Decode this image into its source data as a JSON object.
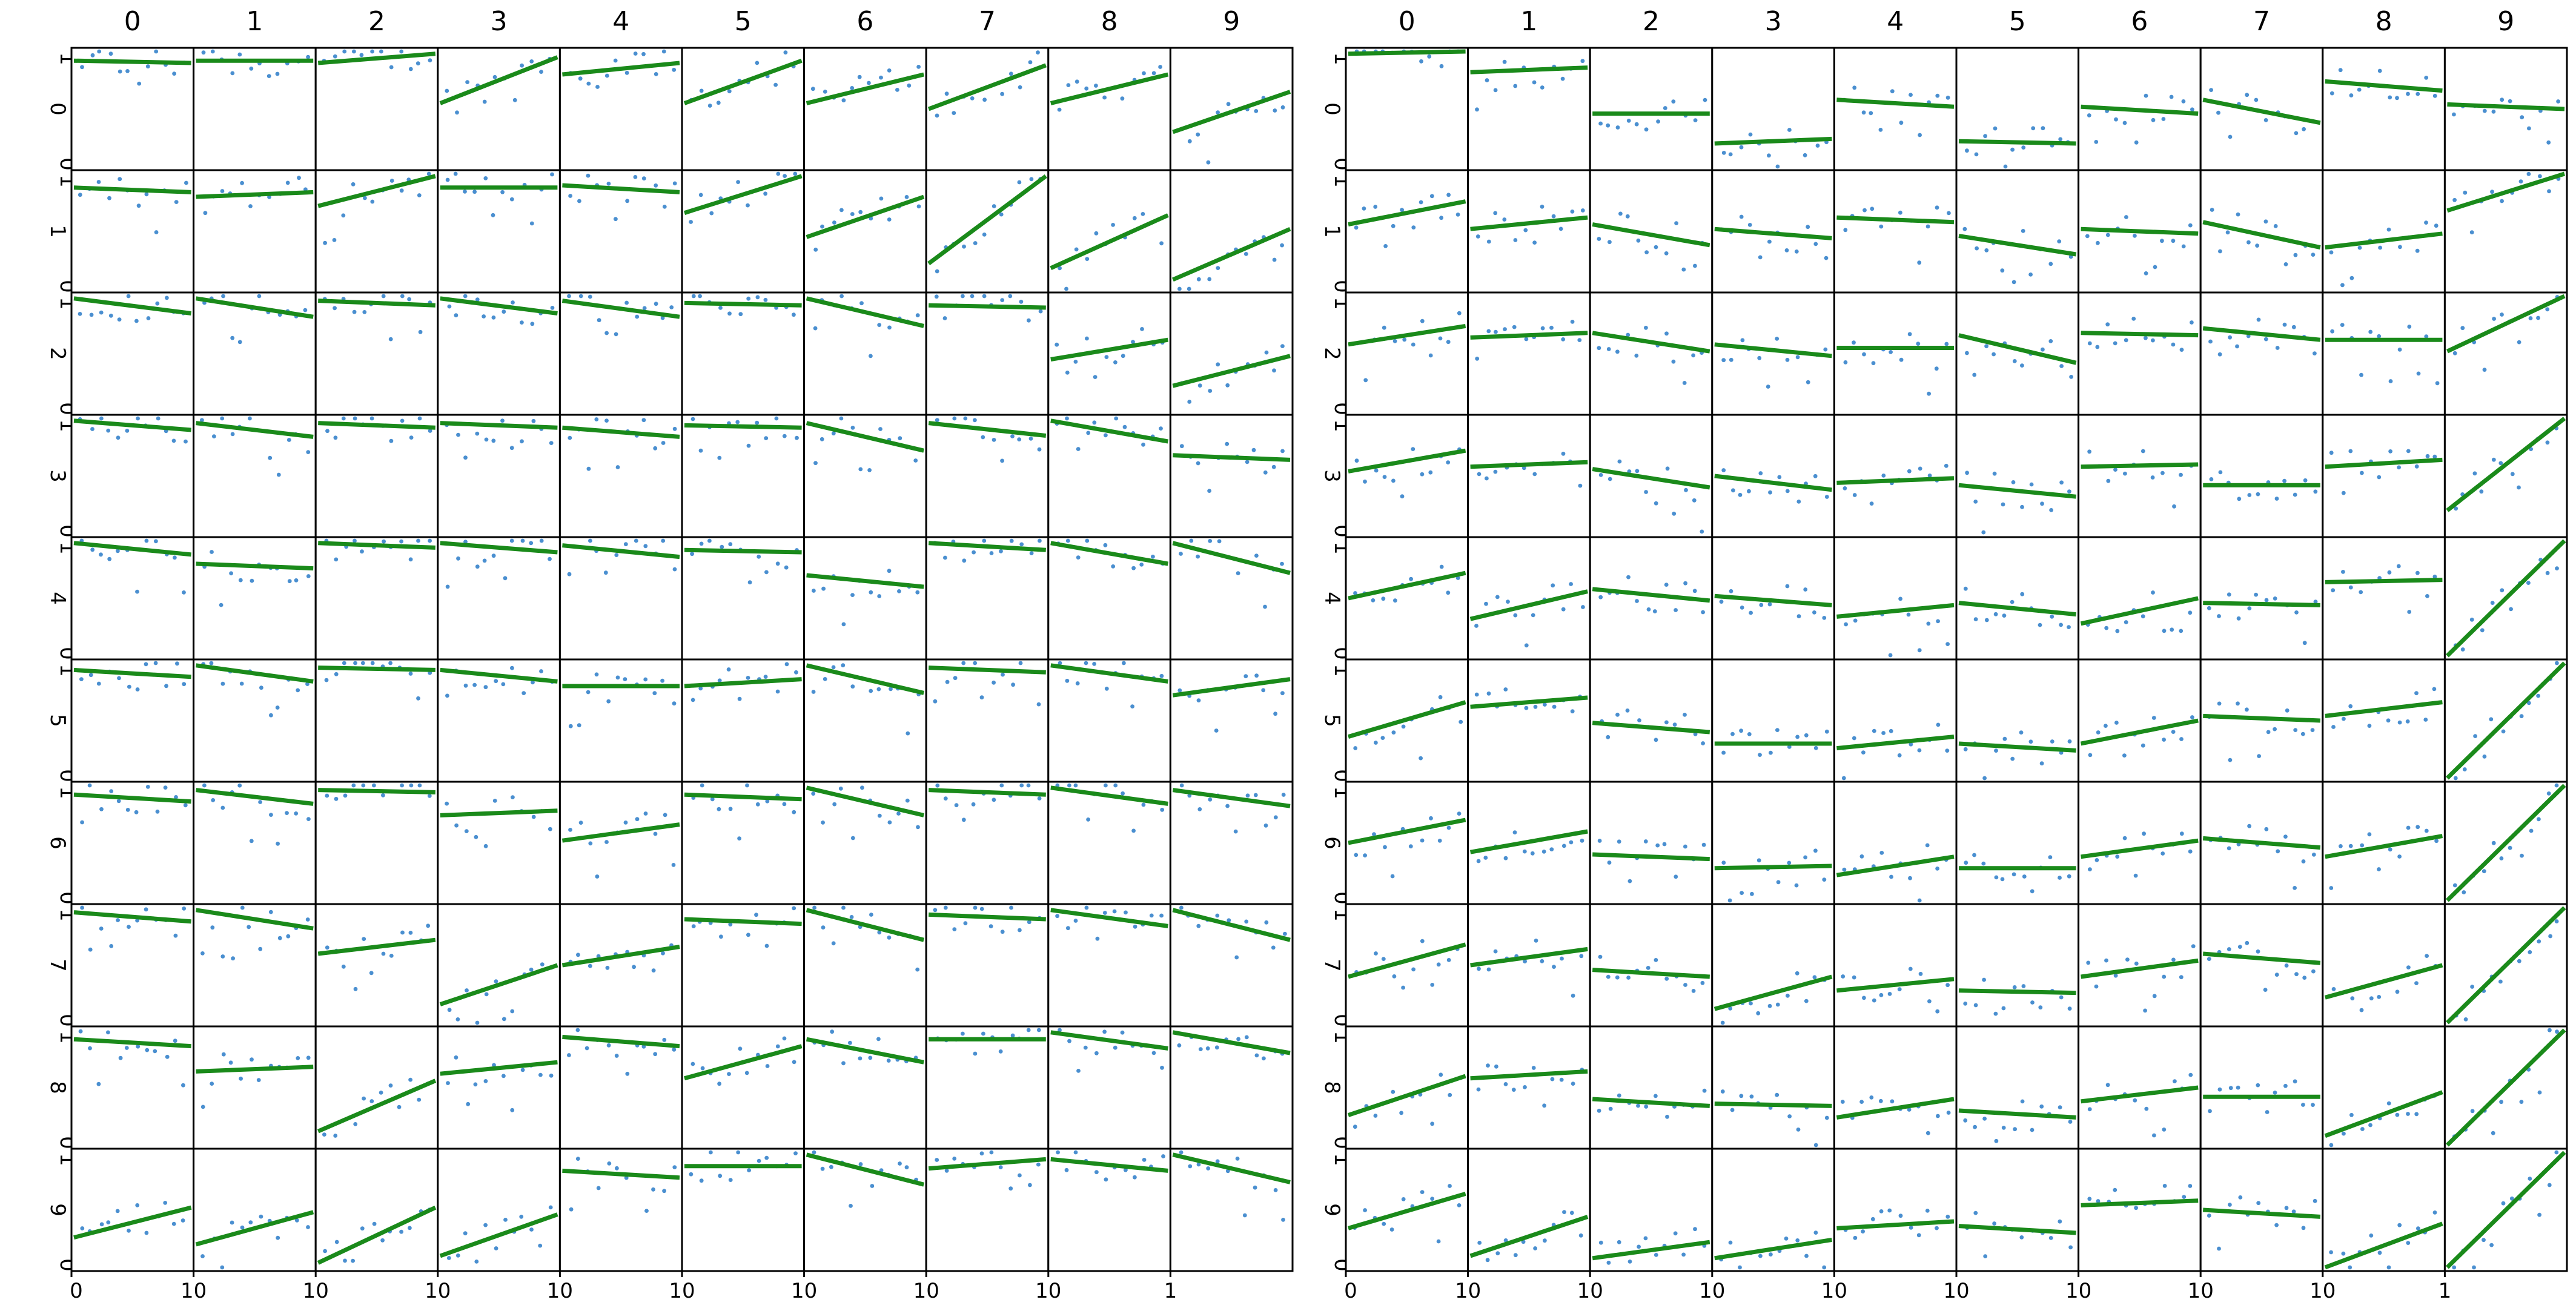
{
  "chart_data": {
    "type": "scatter",
    "description": "Two 10x10 grids of small-multiple scatter plots with fitted linear regression lines",
    "grid_rows": [
      "0",
      "1",
      "2",
      "3",
      "4",
      "5",
      "6",
      "7",
      "8",
      "9"
    ],
    "grid_cols": [
      "0",
      "1",
      "2",
      "3",
      "4",
      "5",
      "6",
      "7",
      "8",
      "9"
    ],
    "x_range": [
      0,
      10
    ],
    "y_range": [
      0,
      1
    ],
    "y_tick_labels": [
      "0",
      "1"
    ],
    "x_tick_labels": [
      "0",
      "10"
    ],
    "title": "",
    "xlabel": "",
    "ylabel": "",
    "colors": {
      "points": "#4a8fd0",
      "fit_line": "#1a8a1a",
      "frame": "#000000"
    },
    "panels": [
      {
        "name": "left_grid",
        "col_labels": [
          "0",
          "1",
          "2",
          "3",
          "4",
          "5",
          "6",
          "7",
          "8",
          "9"
        ],
        "row_labels": [
          "0",
          "1",
          "2",
          "3",
          "4",
          "5",
          "6",
          "7",
          "8",
          "9"
        ],
        "fit_lines": [
          [
            [
              0.92,
              0.9
            ],
            [
              0.92,
              0.92
            ],
            [
              0.9,
              0.98
            ],
            [
              0.55,
              0.95
            ],
            [
              0.8,
              0.9
            ],
            [
              0.55,
              0.92
            ],
            [
              0.55,
              0.8
            ],
            [
              0.5,
              0.88
            ],
            [
              0.55,
              0.8
            ],
            [
              0.3,
              0.65
            ]
          ],
          [
            [
              0.88,
              0.84
            ],
            [
              0.8,
              0.84
            ],
            [
              0.72,
              0.98
            ],
            [
              0.88,
              0.88
            ],
            [
              0.9,
              0.84
            ],
            [
              0.66,
              0.98
            ],
            [
              0.45,
              0.8
            ],
            [
              0.22,
              0.98
            ],
            [
              0.18,
              0.64
            ],
            [
              0.08,
              0.52
            ]
          ],
          [
            [
              0.98,
              0.85
            ],
            [
              0.98,
              0.82
            ],
            [
              0.96,
              0.92
            ],
            [
              0.98,
              0.85
            ],
            [
              0.96,
              0.82
            ],
            [
              0.94,
              0.92
            ],
            [
              0.98,
              0.74
            ],
            [
              0.92,
              0.9
            ],
            [
              0.45,
              0.62
            ],
            [
              0.22,
              0.48
            ]
          ],
          [
            [
              0.98,
              0.9
            ],
            [
              0.96,
              0.84
            ],
            [
              0.96,
              0.92
            ],
            [
              0.96,
              0.92
            ],
            [
              0.92,
              0.84
            ],
            [
              0.94,
              0.92
            ],
            [
              0.96,
              0.72
            ],
            [
              0.96,
              0.85
            ],
            [
              0.98,
              0.8
            ],
            [
              0.68,
              0.64
            ]
          ],
          [
            [
              0.98,
              0.88
            ],
            [
              0.8,
              0.76
            ],
            [
              0.98,
              0.94
            ],
            [
              0.98,
              0.9
            ],
            [
              0.96,
              0.86
            ],
            [
              0.92,
              0.9
            ],
            [
              0.7,
              0.6
            ],
            [
              0.98,
              0.92
            ],
            [
              0.98,
              0.8
            ],
            [
              0.98,
              0.72
            ]
          ],
          [
            [
              0.94,
              0.88
            ],
            [
              0.98,
              0.84
            ],
            [
              0.96,
              0.94
            ],
            [
              0.94,
              0.84
            ],
            [
              0.8,
              0.8
            ],
            [
              0.8,
              0.86
            ],
            [
              0.98,
              0.74
            ],
            [
              0.96,
              0.92
            ],
            [
              0.98,
              0.84
            ],
            [
              0.72,
              0.86
            ]
          ],
          [
            [
              0.92,
              0.86
            ],
            [
              0.96,
              0.84
            ],
            [
              0.96,
              0.94
            ],
            [
              0.74,
              0.78
            ],
            [
              0.52,
              0.66
            ],
            [
              0.92,
              0.88
            ],
            [
              0.98,
              0.74
            ],
            [
              0.96,
              0.92
            ],
            [
              0.98,
              0.84
            ],
            [
              0.96,
              0.82
            ]
          ],
          [
            [
              0.96,
              0.88
            ],
            [
              0.98,
              0.82
            ],
            [
              0.6,
              0.72
            ],
            [
              0.16,
              0.5
            ],
            [
              0.5,
              0.66
            ],
            [
              0.9,
              0.86
            ],
            [
              0.98,
              0.72
            ],
            [
              0.94,
              0.9
            ],
            [
              0.98,
              0.84
            ],
            [
              0.98,
              0.72
            ]
          ],
          [
            [
              0.92,
              0.86
            ],
            [
              0.64,
              0.68
            ],
            [
              0.12,
              0.56
            ],
            [
              0.62,
              0.72
            ],
            [
              0.94,
              0.86
            ],
            [
              0.58,
              0.86
            ],
            [
              0.92,
              0.72
            ],
            [
              0.92,
              0.92
            ],
            [
              0.98,
              0.84
            ],
            [
              0.98,
              0.8
            ]
          ],
          [
            [
              0.26,
              0.52
            ],
            [
              0.2,
              0.48
            ],
            [
              0.04,
              0.52
            ],
            [
              0.1,
              0.46
            ],
            [
              0.84,
              0.78
            ],
            [
              0.88,
              0.88
            ],
            [
              0.98,
              0.72
            ],
            [
              0.86,
              0.94
            ],
            [
              0.94,
              0.84
            ],
            [
              0.98,
              0.74
            ]
          ]
        ]
      },
      {
        "name": "right_grid",
        "col_labels": [
          "0",
          "1",
          "2",
          "3",
          "4",
          "5",
          "6",
          "7",
          "8",
          "9"
        ],
        "row_labels": [
          "0",
          "1",
          "2",
          "3",
          "4",
          "5",
          "6",
          "7",
          "8",
          "9"
        ],
        "fit_lines": [
          [
            [
              0.98,
              1.0
            ],
            [
              0.82,
              0.86
            ],
            [
              0.46,
              0.46
            ],
            [
              0.2,
              0.24
            ],
            [
              0.58,
              0.52
            ],
            [
              0.22,
              0.2
            ],
            [
              0.52,
              0.46
            ],
            [
              0.58,
              0.38
            ],
            [
              0.74,
              0.66
            ],
            [
              0.54,
              0.5
            ]
          ],
          [
            [
              0.56,
              0.76
            ],
            [
              0.52,
              0.62
            ],
            [
              0.56,
              0.38
            ],
            [
              0.52,
              0.44
            ],
            [
              0.62,
              0.58
            ],
            [
              0.46,
              0.3
            ],
            [
              0.52,
              0.48
            ],
            [
              0.58,
              0.36
            ],
            [
              0.36,
              0.48
            ],
            [
              0.68,
              1.0
            ]
          ],
          [
            [
              0.58,
              0.74
            ],
            [
              0.64,
              0.68
            ],
            [
              0.68,
              0.52
            ],
            [
              0.58,
              0.48
            ],
            [
              0.55,
              0.55
            ],
            [
              0.66,
              0.42
            ],
            [
              0.68,
              0.66
            ],
            [
              0.72,
              0.62
            ],
            [
              0.62,
              0.62
            ],
            [
              0.52,
              1.0
            ]
          ],
          [
            [
              0.54,
              0.72
            ],
            [
              0.58,
              0.62
            ],
            [
              0.56,
              0.4
            ],
            [
              0.5,
              0.38
            ],
            [
              0.44,
              0.48
            ],
            [
              0.42,
              0.32
            ],
            [
              0.58,
              0.6
            ],
            [
              0.42,
              0.42
            ],
            [
              0.58,
              0.64
            ],
            [
              0.2,
              1.0
            ]
          ],
          [
            [
              0.5,
              0.72
            ],
            [
              0.32,
              0.56
            ],
            [
              0.58,
              0.48
            ],
            [
              0.52,
              0.44
            ],
            [
              0.34,
              0.44
            ],
            [
              0.46,
              0.36
            ],
            [
              0.28,
              0.5
            ],
            [
              0.46,
              0.44
            ],
            [
              0.64,
              0.66
            ],
            [
              0.0,
              1.0
            ]
          ],
          [
            [
              0.36,
              0.66
            ],
            [
              0.62,
              0.7
            ],
            [
              0.48,
              0.4
            ],
            [
              0.3,
              0.3
            ],
            [
              0.26,
              0.36
            ],
            [
              0.3,
              0.24
            ],
            [
              0.3,
              0.5
            ],
            [
              0.54,
              0.5
            ],
            [
              0.54,
              0.66
            ],
            [
              0.0,
              1.0
            ]
          ],
          [
            [
              0.5,
              0.7
            ],
            [
              0.42,
              0.6
            ],
            [
              0.4,
              0.36
            ],
            [
              0.28,
              0.3
            ],
            [
              0.22,
              0.38
            ],
            [
              0.28,
              0.28
            ],
            [
              0.38,
              0.52
            ],
            [
              0.54,
              0.46
            ],
            [
              0.38,
              0.56
            ],
            [
              0.0,
              1.0
            ]
          ],
          [
            [
              0.4,
              0.68
            ],
            [
              0.5,
              0.64
            ],
            [
              0.46,
              0.4
            ],
            [
              0.12,
              0.4
            ],
            [
              0.28,
              0.38
            ],
            [
              0.28,
              0.26
            ],
            [
              0.4,
              0.54
            ],
            [
              0.6,
              0.52
            ],
            [
              0.22,
              0.5
            ],
            [
              0.0,
              1.0
            ]
          ],
          [
            [
              0.26,
              0.6
            ],
            [
              0.58,
              0.64
            ],
            [
              0.4,
              0.34
            ],
            [
              0.36,
              0.34
            ],
            [
              0.24,
              0.4
            ],
            [
              0.3,
              0.24
            ],
            [
              0.38,
              0.5
            ],
            [
              0.42,
              0.42
            ],
            [
              0.08,
              0.46
            ],
            [
              0.0,
              1.0
            ]
          ],
          [
            [
              0.34,
              0.64
            ],
            [
              0.1,
              0.44
            ],
            [
              0.08,
              0.22
            ],
            [
              0.08,
              0.24
            ],
            [
              0.34,
              0.4
            ],
            [
              0.36,
              0.3
            ],
            [
              0.54,
              0.58
            ],
            [
              0.5,
              0.44
            ],
            [
              0.0,
              0.38
            ],
            [
              0.0,
              1.0
            ]
          ]
        ]
      }
    ],
    "x_axis_bottom_labels_left": [
      "0",
      "10",
      "10",
      "10",
      "10",
      "10",
      "10",
      "10",
      "10",
      "1"
    ],
    "x_axis_bottom_labels_right": [
      "0",
      "10",
      "10",
      "10",
      "10",
      "10",
      "10",
      "10",
      "10",
      "1"
    ]
  }
}
